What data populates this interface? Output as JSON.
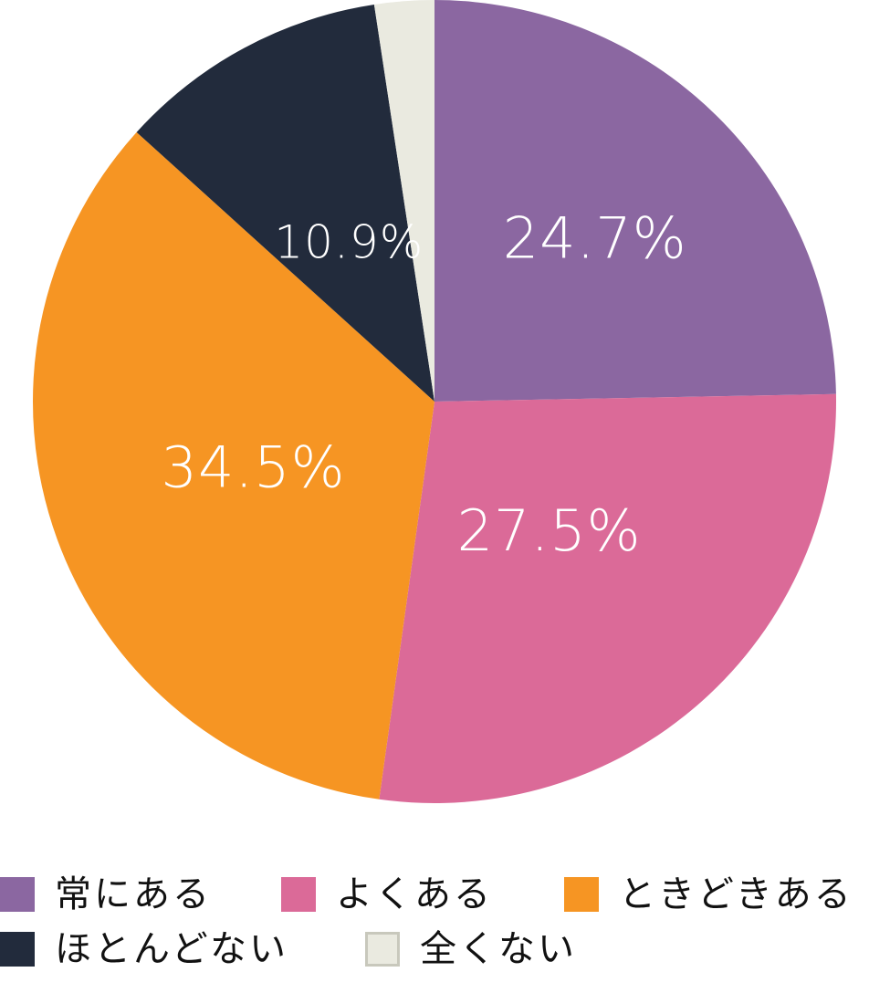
{
  "chart_data": {
    "type": "pie",
    "title": "",
    "start_angle_deg": 0,
    "direction": "clockwise",
    "slices": [
      {
        "name": "常にある",
        "value": 24.7,
        "label": "24.7%",
        "color": "#8b67a1"
      },
      {
        "name": "よくある",
        "value": 27.5,
        "label": "27.5%",
        "color": "#db6a98"
      },
      {
        "name": "ときどきある",
        "value": 34.5,
        "label": "34.5%",
        "color": "#f69523"
      },
      {
        "name": "ほとんどない",
        "value": 10.9,
        "label": "10.9%",
        "color": "#222b3c"
      },
      {
        "name": "全くない",
        "value": 2.4,
        "label": "",
        "color": "#eaeae0"
      }
    ],
    "legend": {
      "placement": "bottom",
      "entries": [
        {
          "label": "常にある",
          "color": "#8b67a1"
        },
        {
          "label": "よくある",
          "color": "#db6a98"
        },
        {
          "label": "ときどきある",
          "color": "#f69523"
        },
        {
          "label": "ほとんどない",
          "color": "#222b3c"
        },
        {
          "label": "全くない",
          "color": "#eaeae0",
          "border": "#c8c8bc"
        }
      ]
    }
  }
}
